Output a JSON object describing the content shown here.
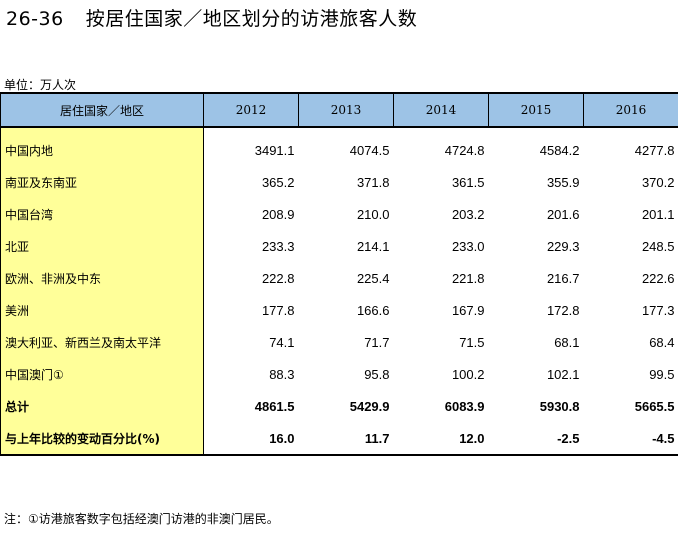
{
  "title": {
    "number": "26-36",
    "text": "按居住国家／地区划分的访港旅客人数"
  },
  "unit": "单位：万人次",
  "table": {
    "region_header": "居住国家／地区",
    "years": [
      "2012",
      "2013",
      "2014",
      "2015",
      "2016"
    ],
    "rows": [
      {
        "label": "中国内地",
        "values": [
          "3491.1",
          "4074.5",
          "4724.8",
          "4584.2",
          "4277.8"
        ]
      },
      {
        "label": "南亚及东南亚",
        "values": [
          "365.2",
          "371.8",
          "361.5",
          "355.9",
          "370.2"
        ]
      },
      {
        "label": "中国台湾",
        "values": [
          "208.9",
          "210.0",
          "203.2",
          "201.6",
          "201.1"
        ]
      },
      {
        "label": "北亚",
        "values": [
          "233.3",
          "214.1",
          "233.0",
          "229.3",
          "248.5"
        ]
      },
      {
        "label": "欧洲、非洲及中东",
        "values": [
          "222.8",
          "225.4",
          "221.8",
          "216.7",
          "222.6"
        ]
      },
      {
        "label": "美洲",
        "values": [
          "177.8",
          "166.6",
          "167.9",
          "172.8",
          "177.3"
        ]
      },
      {
        "label": "澳大利亚、新西兰及南太平洋",
        "values": [
          "74.1",
          "71.7",
          "71.5",
          "68.1",
          "68.4"
        ]
      },
      {
        "label": "中国澳门①",
        "values": [
          "88.3",
          "95.8",
          "100.2",
          "102.1",
          "99.5"
        ]
      },
      {
        "label": "总计",
        "values": [
          "4861.5",
          "5429.9",
          "6083.9",
          "5930.8",
          "5665.5"
        ]
      },
      {
        "label": "与上年比较的变动百分比(%)",
        "values": [
          "16.0",
          "11.7",
          "12.0",
          "-2.5",
          "-4.5"
        ]
      }
    ]
  },
  "note": "注：①访港旅客数字包括经澳门访港的非澳门居民。"
}
